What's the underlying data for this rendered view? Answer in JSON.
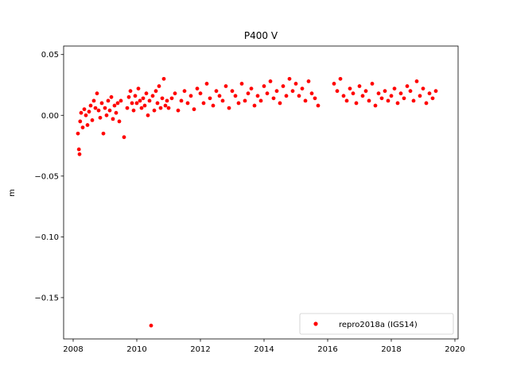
{
  "chart_data": {
    "type": "scatter",
    "title": "P400 V",
    "xlabel": "",
    "ylabel": "m",
    "xlim": [
      2007.7,
      2020.1
    ],
    "ylim": [
      -0.184,
      0.057
    ],
    "xticks": [
      2008,
      2010,
      2012,
      2014,
      2016,
      2018,
      2020
    ],
    "xtick_labels": [
      "2008",
      "2010",
      "2012",
      "2014",
      "2016",
      "2018",
      "2020"
    ],
    "yticks": [
      0.05,
      0.0,
      -0.05,
      -0.1,
      -0.15
    ],
    "ytick_labels": [
      "0.05",
      "0.00",
      "−0.05",
      "−0.10",
      "−0.15"
    ],
    "grid": false,
    "legend_position": "lower-right",
    "series": [
      {
        "name": "repro2018a (IGS14)",
        "color": "#ff0000",
        "marker": "dot",
        "x": [
          2008.15,
          2008.18,
          2008.2,
          2008.22,
          2008.25,
          2008.3,
          2008.35,
          2008.4,
          2008.45,
          2008.5,
          2008.55,
          2008.6,
          2008.65,
          2008.7,
          2008.75,
          2008.8,
          2008.85,
          2008.9,
          2008.95,
          2009.0,
          2009.05,
          2009.1,
          2009.15,
          2009.2,
          2009.25,
          2009.3,
          2009.35,
          2009.4,
          2009.45,
          2009.5,
          2009.6,
          2009.7,
          2009.75,
          2009.8,
          2009.85,
          2009.9,
          2009.95,
          2010.0,
          2010.05,
          2010.1,
          2010.15,
          2010.2,
          2010.25,
          2010.3,
          2010.35,
          2010.4,
          2010.45,
          2010.5,
          2010.55,
          2010.6,
          2010.65,
          2010.7,
          2010.75,
          2010.8,
          2010.85,
          2010.9,
          2010.95,
          2011.0,
          2011.1,
          2011.2,
          2011.3,
          2011.4,
          2011.5,
          2011.6,
          2011.7,
          2011.8,
          2011.9,
          2012.0,
          2012.1,
          2012.2,
          2012.3,
          2012.4,
          2012.5,
          2012.6,
          2012.7,
          2012.8,
          2012.9,
          2013.0,
          2013.1,
          2013.2,
          2013.3,
          2013.4,
          2013.5,
          2013.6,
          2013.7,
          2013.8,
          2013.9,
          2014.0,
          2014.1,
          2014.2,
          2014.3,
          2014.4,
          2014.5,
          2014.6,
          2014.7,
          2014.8,
          2014.9,
          2015.0,
          2015.1,
          2015.2,
          2015.3,
          2015.4,
          2015.5,
          2015.6,
          2015.7,
          2016.2,
          2016.3,
          2016.4,
          2016.5,
          2016.6,
          2016.7,
          2016.8,
          2016.9,
          2017.0,
          2017.1,
          2017.2,
          2017.3,
          2017.4,
          2017.5,
          2017.6,
          2017.7,
          2017.8,
          2017.9,
          2018.0,
          2018.1,
          2018.2,
          2018.3,
          2018.4,
          2018.5,
          2018.6,
          2018.7,
          2018.8,
          2018.9,
          2019.0,
          2019.1,
          2019.2,
          2019.3,
          2019.4
        ],
        "y": [
          -0.015,
          -0.028,
          -0.032,
          -0.005,
          0.002,
          -0.01,
          0.005,
          0.0,
          -0.008,
          0.003,
          0.008,
          -0.004,
          0.012,
          0.006,
          0.018,
          0.004,
          -0.002,
          0.01,
          -0.015,
          0.006,
          0.0,
          0.012,
          0.004,
          0.015,
          -0.003,
          0.008,
          0.002,
          0.01,
          -0.005,
          0.012,
          -0.018,
          0.006,
          0.015,
          0.02,
          0.01,
          0.004,
          0.016,
          0.01,
          0.022,
          0.012,
          0.006,
          0.014,
          0.008,
          0.018,
          0.0,
          0.012,
          -0.173,
          0.016,
          0.004,
          0.02,
          0.01,
          0.024,
          0.006,
          0.014,
          0.03,
          0.008,
          0.012,
          0.006,
          0.014,
          0.018,
          0.004,
          0.012,
          0.02,
          0.01,
          0.016,
          0.005,
          0.022,
          0.018,
          0.01,
          0.026,
          0.014,
          0.008,
          0.02,
          0.016,
          0.012,
          0.024,
          0.006,
          0.02,
          0.016,
          0.01,
          0.026,
          0.012,
          0.018,
          0.022,
          0.008,
          0.016,
          0.012,
          0.024,
          0.018,
          0.028,
          0.014,
          0.02,
          0.01,
          0.024,
          0.016,
          0.03,
          0.02,
          0.026,
          0.016,
          0.022,
          0.012,
          0.028,
          0.018,
          0.014,
          0.008,
          0.026,
          0.02,
          0.03,
          0.016,
          0.012,
          0.022,
          0.018,
          0.01,
          0.024,
          0.016,
          0.02,
          0.012,
          0.026,
          0.008,
          0.018,
          0.014,
          0.02,
          0.012,
          0.016,
          0.022,
          0.01,
          0.018,
          0.014,
          0.024,
          0.02,
          0.012,
          0.028,
          0.016,
          0.022,
          0.01,
          0.018,
          0.014,
          0.02
        ]
      }
    ]
  }
}
